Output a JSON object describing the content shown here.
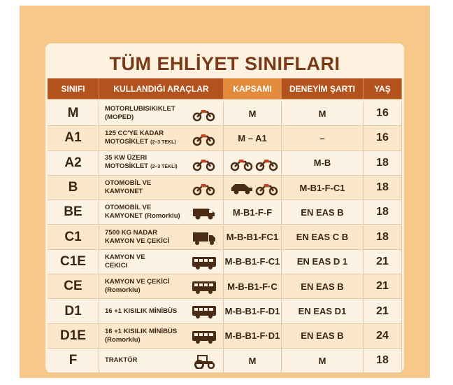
{
  "title": "TÜM EHLİYET SINIFLARI",
  "table": {
    "headers": [
      "SINIFI",
      "KULLANDIĞI ARAÇLAR",
      "KAPSAMI",
      "DENEYİM ŞARTI",
      "YAŞ"
    ],
    "rows": [
      {
        "class": "M",
        "vehicle": [
          "MOTORLUBISIKIKLET",
          "(MOPED)"
        ],
        "scope": "M",
        "experience": "M",
        "age": 16
      },
      {
        "class": "A1",
        "vehicle": [
          "125 CC'YE KADAR",
          "MOTOSİKLET"
        ],
        "note": "(2–3 TEKL)",
        "scope": "M – A1",
        "experience": "–",
        "age": 16
      },
      {
        "class": "A2",
        "vehicle": [
          "35 KW ÜZERI",
          "MOTOSİKLET"
        ],
        "note": "(2–3 TEKLİ)",
        "experience": "M-B",
        "age": 18
      },
      {
        "class": "B",
        "vehicle": [
          "OTOMOBİL VE",
          "KAMYONET"
        ],
        "experience": "M-B1-F-C1",
        "age": 18
      },
      {
        "class": "BE",
        "vehicle": [
          "OTOMOBİL VE",
          "KAMYONET (Romorklu)"
        ],
        "scope": "M-B1-F-F",
        "experience": "EN EAS B",
        "age": 18
      },
      {
        "class": "C1",
        "vehicle": [
          "7500 KG NADAR",
          "KAMYON VE ÇEKİCİ"
        ],
        "scope": "M-B-B1-FC1",
        "experience": "EN EAS C B",
        "age": 18
      },
      {
        "class": "C1E",
        "vehicle": [
          "KAMYON VE",
          "CEKICI"
        ],
        "scope": "M-B-B1-F-C1",
        "experience": "EN EAS D 1",
        "age": 21
      },
      {
        "class": "CE",
        "vehicle": [
          "KAMYON VE ÇEKİCİ",
          "(Romorklu)"
        ],
        "scope": "M-B-B1-F·C",
        "experience": "EN EAS B",
        "age": 21
      },
      {
        "class": "D1",
        "vehicle": [
          "16 +1 KISILIK MİNİBÜS"
        ],
        "scope": "M-B-B1-F-D1",
        "experience": "EN EAS D1",
        "age": 21
      },
      {
        "class": "D1E",
        "vehicle": [
          "16 +1 KISILIK MİNİBÜS",
          "(Romorklu)"
        ],
        "scope": "M-B-B1-F·D1",
        "experience": "EN EAS B",
        "age": 24
      },
      {
        "class": "F",
        "vehicle": [
          "TRAKTÖR"
        ],
        "scope": "M",
        "experience": "M",
        "age": 18
      }
    ]
  }
}
